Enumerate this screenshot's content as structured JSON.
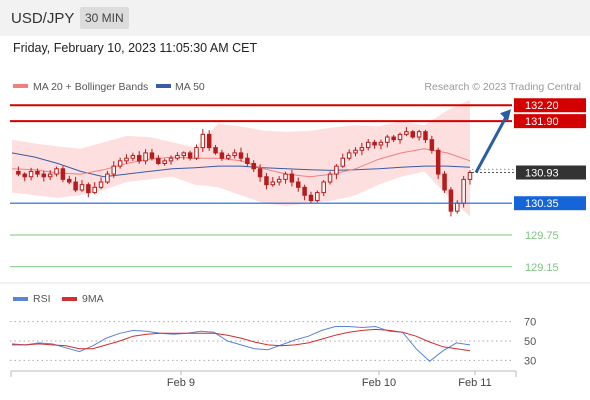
{
  "header": {
    "symbol": "USD/JPY",
    "timeframe": "30 MIN"
  },
  "datetime": "Friday, February 10, 2023 11:05:30 AM CET",
  "legend": {
    "ma20": "MA 20 + Bollinger Bands",
    "ma50": "MA 50",
    "source": "Research © 2023 Trading Central",
    "rsi": "RSI",
    "ma9": "9MA"
  },
  "colors": {
    "candle": "#b71c1c",
    "ma20": "#f08080",
    "band": "#fdd9d9",
    "ma50": "#3b5ba8",
    "resistance": "#d40000",
    "pivot": "#1565d8",
    "support": "#4caf50",
    "arrow": "#2a5ca8",
    "rsi": "#5b84d6",
    "rsi_ma": "#d32f2f"
  },
  "chart_data": [
    {
      "type": "candlestick",
      "title": "USD/JPY",
      "ylim": [
        128.9,
        132.45
      ],
      "x_labels": [
        "Feb 9",
        "Feb 10",
        "Feb 11"
      ],
      "levels": {
        "resistance": [
          "132.20",
          "131.90"
        ],
        "last_price": "130.93",
        "pivot": "130.35",
        "support": [
          "129.75",
          "129.15"
        ]
      },
      "close_path": [
        130.95,
        130.9,
        130.85,
        130.95,
        130.9,
        130.85,
        130.9,
        131.0,
        130.8,
        130.75,
        130.6,
        130.7,
        130.55,
        130.65,
        130.75,
        130.9,
        131.05,
        131.15,
        131.2,
        131.25,
        131.15,
        131.3,
        131.2,
        131.1,
        131.15,
        131.2,
        131.25,
        131.3,
        131.2,
        131.4,
        131.65,
        131.4,
        131.3,
        131.2,
        131.25,
        131.3,
        131.2,
        131.1,
        131.0,
        130.85,
        130.7,
        130.75,
        130.8,
        130.9,
        130.75,
        130.65,
        130.5,
        130.4,
        130.55,
        130.75,
        130.9,
        131.05,
        131.2,
        131.3,
        131.35,
        131.4,
        131.5,
        131.45,
        131.5,
        131.6,
        131.55,
        131.65,
        131.7,
        131.6,
        131.7,
        131.55,
        131.35,
        130.9,
        130.6,
        130.2,
        130.35,
        130.8,
        130.93
      ],
      "bollinger": {
        "upper": [
          131.55,
          131.48,
          131.42,
          131.38,
          131.5,
          131.62,
          131.6,
          131.5,
          131.4,
          131.85,
          131.8,
          131.72,
          131.7,
          131.72,
          131.78,
          131.82,
          131.8,
          131.9,
          131.82,
          132.1,
          132.3
        ],
        "lower": [
          130.55,
          130.5,
          130.45,
          130.5,
          130.6,
          130.75,
          130.8,
          130.85,
          130.7,
          130.65,
          130.5,
          130.35,
          130.3,
          130.35,
          130.4,
          130.5,
          130.7,
          130.85,
          130.95,
          130.5,
          130.1
        ]
      },
      "ma20": [
        131.0,
        130.98,
        130.92,
        130.9,
        130.98,
        131.1,
        131.18,
        131.22,
        131.2,
        131.2,
        131.15,
        131.0,
        130.9,
        130.85,
        130.9,
        131.0,
        131.18,
        131.3,
        131.38,
        131.3,
        131.15
      ],
      "ma50": [
        131.3,
        131.22,
        131.1,
        130.95,
        130.85,
        130.9,
        130.95,
        131.0,
        131.02,
        131.05,
        131.05,
        131.02,
        131.0,
        130.98,
        130.97,
        130.98,
        131.0,
        131.03,
        131.05,
        131.05,
        131.03
      ]
    },
    {
      "type": "line",
      "title": "RSI",
      "ylim": [
        20,
        80
      ],
      "y_ticks": [
        "70",
        "50",
        "30"
      ],
      "series": [
        {
          "name": "RSI",
          "values": [
            47,
            46,
            48,
            47,
            43,
            39,
            45,
            53,
            58,
            61,
            60,
            58,
            57,
            58,
            60,
            59,
            50,
            46,
            42,
            41,
            46,
            51,
            55,
            61,
            65,
            65,
            64,
            65,
            60,
            59,
            42,
            29,
            40,
            48,
            46
          ]
        },
        {
          "name": "9MA",
          "values": [
            46,
            46,
            47,
            46,
            45,
            42,
            42,
            46,
            50,
            55,
            57,
            58,
            58,
            58,
            58,
            58,
            56,
            53,
            49,
            46,
            45,
            46,
            48,
            52,
            56,
            59,
            61,
            62,
            61,
            59,
            55,
            49,
            44,
            42,
            40
          ]
        }
      ]
    }
  ]
}
